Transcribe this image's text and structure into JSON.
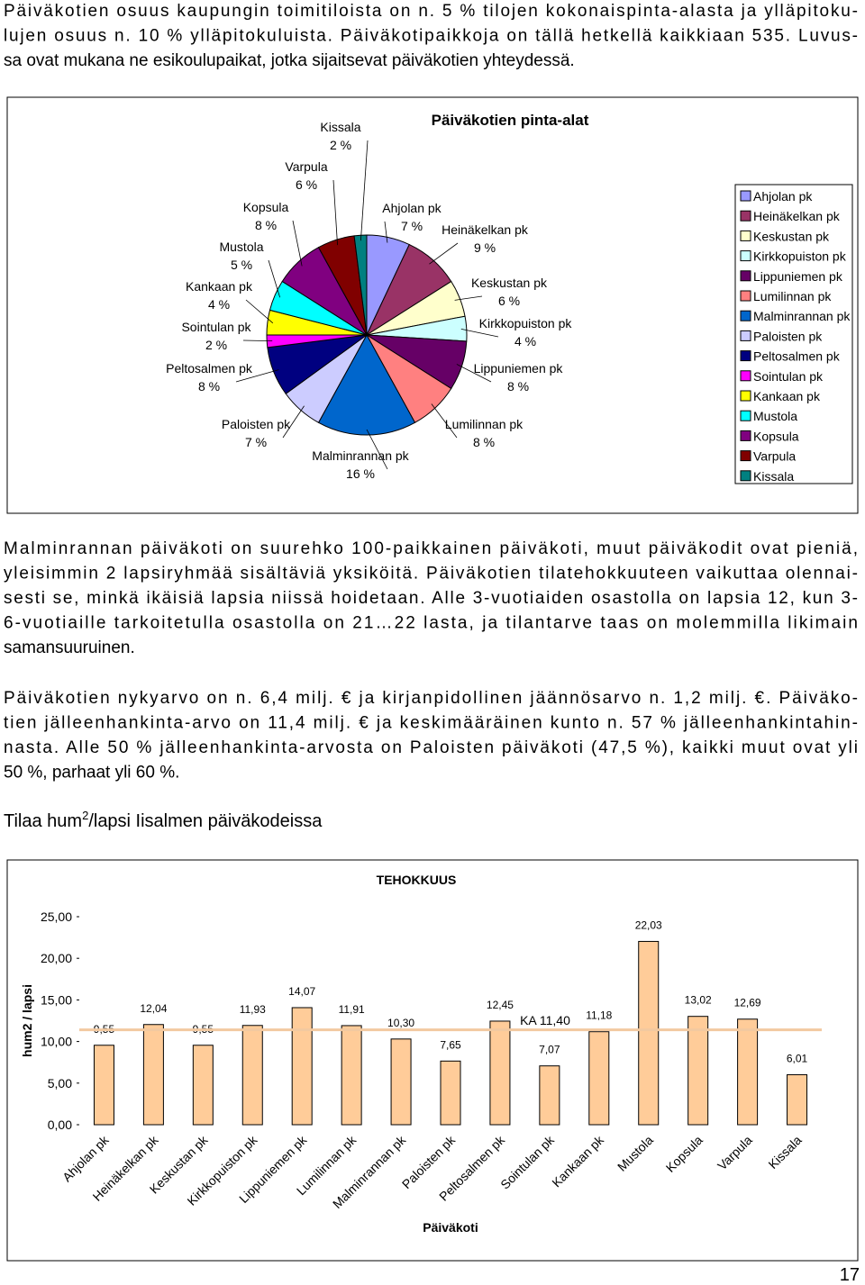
{
  "intro": [
    "Päiväkotien osuus kaupungin toimitiloista on n. 5 % tilojen kokonaispinta-alasta ja ylläpitoku-",
    "lujen osuus n. 10 % ylläpitokuluista. Päiväkotipaikkoja on tällä hetkellä kaikkiaan 535. Luvus-",
    "sa ovat mukana ne esikoulupaikat, jotka sijaitsevat päiväkotien yhteydessä."
  ],
  "paragraphs": [
    [
      "Malminrannan päiväkoti on suurehko 100-paikkainen päiväkoti, muut päiväkodit ovat pieniä,",
      "yleisimmin 2 lapsiryhmää sisältäviä yksiköitä. Päiväkotien tilatehokkuuteen vaikuttaa olennai-",
      "sesti se, minkä ikäisiä lapsia niissä hoidetaan. Alle 3-vuotiaiden osastolla on lapsia 12, kun 3-",
      "6-vuotiaille tarkoitetulla osastolla on 21…22 lasta, ja tilantarve taas on molemmilla likimain",
      "samansuuruinen."
    ],
    [
      "Päiväkotien nykyarvo on n. 6,4 milj. € ja kirjanpidollinen jäännösarvo n. 1,2 milj. €. Päiväko-",
      "tien jälleenhankinta-arvo on 11,4 milj. € ja keskimääräinen kunto n. 57 % jälleenhankintahin-",
      "nasta. Alle 50 % jälleenhankinta-arvosta on Paloisten päiväkoti (47,5 %), kaikki muut ovat yli",
      "50 %, parhaat yli 60 %."
    ]
  ],
  "heading": {
    "text": "Tilaa hum",
    "sup": "2",
    "rest": "/lapsi Iisalmen päiväkodeissa"
  },
  "chart_data": [
    {
      "type": "pie",
      "title": "Päiväkotien pinta-alat",
      "categories": [
        "Ahjolan pk",
        "Heinäkelkan pk",
        "Keskustan pk",
        "Kirkkopuiston pk",
        "Lippuniemen pk",
        "Lumilinnan pk",
        "Malminrannan pk",
        "Paloisten pk",
        "Peltosalmen pk",
        "Sointulan pk",
        "Kankaan pk",
        "Mustola",
        "Kopsula",
        "Varpula",
        "Kissala"
      ],
      "values": [
        7,
        9,
        6,
        4,
        8,
        8,
        16,
        7,
        8,
        2,
        4,
        5,
        8,
        6,
        2
      ],
      "value_labels": [
        "7 %",
        "9 %",
        "6 %",
        "4 %",
        "8 %",
        "8 %",
        "16 %",
        "7 %",
        "8 %",
        "2 %",
        "4 %",
        "5 %",
        "8 %",
        "6 %",
        "2 %"
      ],
      "colors": [
        "#9999ff",
        "#993366",
        "#ffffcc",
        "#ccffff",
        "#660066",
        "#ff8080",
        "#0066cc",
        "#ccccff",
        "#000080",
        "#ff00ff",
        "#ffff00",
        "#00ffff",
        "#800080",
        "#800000",
        "#008080"
      ],
      "legend": "right"
    },
    {
      "type": "bar",
      "title": "TEHOKKUUS",
      "y_label": "hum2 / lapsi",
      "x_label": "Päiväkoti",
      "categories": [
        "Ahjolan pk",
        "Heinäkelkan pk",
        "Keskustan pk",
        "Kirkkopuiston pk",
        "Lippuniemen pk",
        "Lumilinnan pk",
        "Malminrannan pk",
        "Paloisten pk",
        "Peltosalmen pk",
        "Sointulan pk",
        "Kankaan pk",
        "Mustola",
        "Kopsula",
        "Varpula",
        "Kissala"
      ],
      "values": [
        9.55,
        12.04,
        9.55,
        11.93,
        14.07,
        11.91,
        10.3,
        7.65,
        12.45,
        7.07,
        11.18,
        22.03,
        13.02,
        12.69,
        6.01
      ],
      "value_labels": [
        "9,55",
        "12,04",
        "9,55",
        "11,93",
        "14,07",
        "11,91",
        "10,30",
        "7,65",
        "12,45",
        "7,07",
        "11,18",
        "22,03",
        "13,02",
        "12,69",
        "6,01"
      ],
      "color": "#ffcc99",
      "ylim": [
        0,
        25
      ],
      "yticks": [
        {
          "value": 0,
          "label": "0,00"
        },
        {
          "value": 5,
          "label": "5,00"
        },
        {
          "value": 10,
          "label": "10,00"
        },
        {
          "value": 15,
          "label": "15,00"
        },
        {
          "value": 20,
          "label": "20,00"
        },
        {
          "value": 25,
          "label": "25,00"
        }
      ],
      "reference_line": {
        "value": 11.4,
        "label": "KA 11,40",
        "color": "#f2c9a0"
      }
    }
  ],
  "page_number": "17"
}
